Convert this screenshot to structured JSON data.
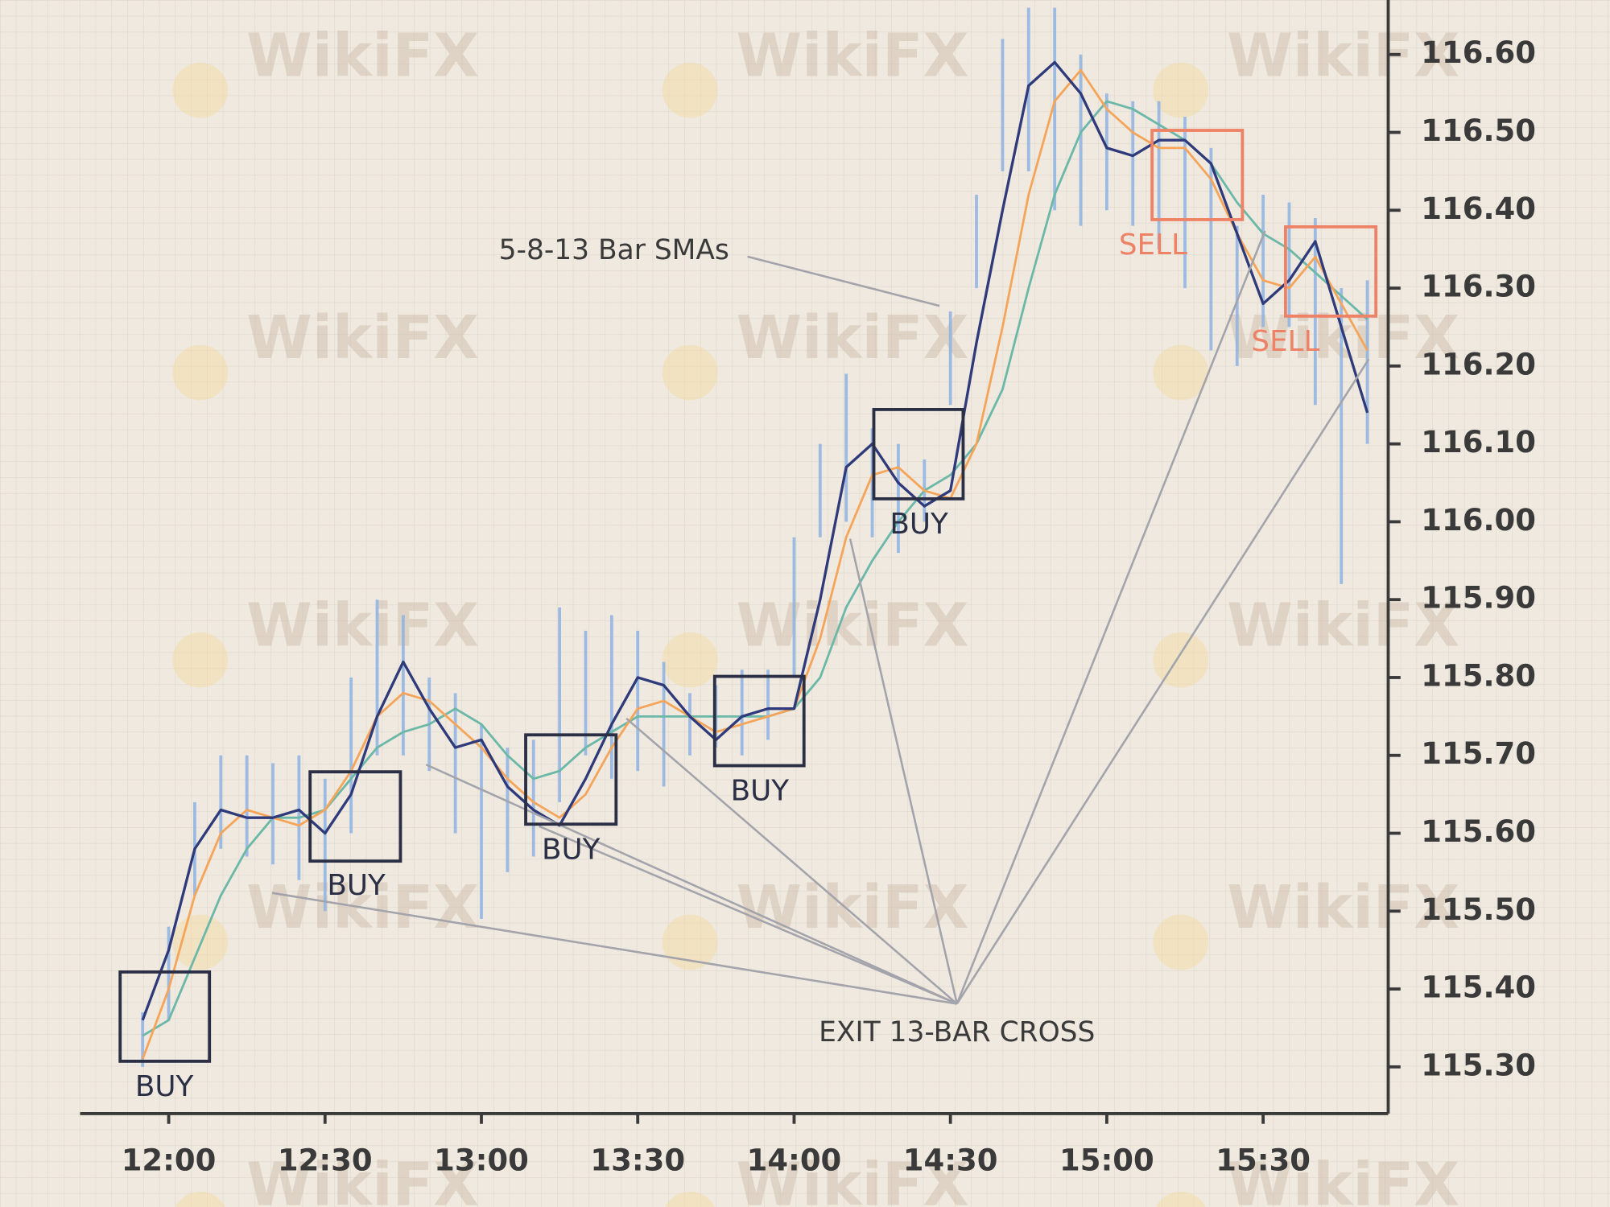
{
  "chart_data": {
    "type": "range",
    "watermark": "WikiFX",
    "x": [
      715,
      720,
      725,
      730,
      735,
      740,
      745,
      750,
      755,
      760,
      765,
      770,
      775,
      780,
      785,
      790,
      795,
      800,
      805,
      810,
      815,
      820,
      825,
      830,
      835,
      840,
      845,
      850,
      855,
      860,
      865,
      870,
      875,
      880,
      885,
      890,
      895,
      900,
      905,
      910,
      915,
      920,
      925,
      930,
      935,
      940,
      945,
      950
    ],
    "bars": {
      "color": "#8fb4e3",
      "high": [
        115.37,
        115.48,
        115.64,
        115.7,
        115.7,
        115.69,
        115.7,
        115.67,
        115.8,
        115.9,
        115.88,
        115.8,
        115.78,
        115.74,
        115.71,
        115.72,
        115.89,
        115.86,
        115.88,
        115.86,
        115.82,
        115.78,
        115.79,
        115.81,
        115.81,
        115.98,
        116.1,
        116.19,
        116.12,
        116.1,
        116.08,
        116.27,
        116.42,
        116.62,
        116.66,
        116.66,
        116.6,
        116.55,
        116.54,
        116.54,
        116.52,
        116.48,
        116.38,
        116.42,
        116.41,
        116.39,
        116.3,
        116.31
      ],
      "low": [
        115.3,
        115.36,
        115.52,
        115.58,
        115.57,
        115.56,
        115.54,
        115.5,
        115.6,
        115.7,
        115.7,
        115.68,
        115.6,
        115.49,
        115.55,
        115.57,
        115.64,
        115.7,
        115.67,
        115.68,
        115.66,
        115.7,
        115.71,
        115.7,
        115.72,
        115.8,
        115.98,
        116.0,
        115.98,
        115.96,
        116.0,
        116.15,
        116.3,
        116.45,
        116.45,
        116.4,
        116.38,
        116.4,
        116.38,
        116.35,
        116.3,
        116.22,
        116.2,
        116.25,
        116.25,
        116.15,
        115.92,
        116.1
      ]
    },
    "series": [
      {
        "color": "#6bb8a8",
        "values": [
          115.34,
          115.36,
          115.44,
          115.52,
          115.58,
          115.62,
          115.62,
          115.63,
          115.67,
          115.71,
          115.73,
          115.74,
          115.76,
          115.74,
          115.7,
          115.67,
          115.68,
          115.71,
          115.73,
          115.75,
          115.75,
          115.75,
          115.75,
          115.75,
          115.75,
          115.76,
          115.8,
          115.89,
          115.95,
          116.0,
          116.04,
          116.06,
          116.1,
          116.17,
          116.3,
          116.42,
          116.5,
          116.54,
          116.53,
          116.51,
          116.49,
          116.46,
          116.41,
          116.37,
          116.35,
          116.32,
          116.29,
          116.26
        ]
      },
      {
        "color": "#f5a55a",
        "values": [
          115.31,
          115.4,
          115.52,
          115.6,
          115.63,
          115.62,
          115.61,
          115.63,
          115.68,
          115.75,
          115.78,
          115.77,
          115.74,
          115.71,
          115.67,
          115.64,
          115.62,
          115.65,
          115.71,
          115.76,
          115.77,
          115.75,
          115.73,
          115.74,
          115.75,
          115.76,
          115.85,
          115.98,
          116.06,
          116.07,
          116.04,
          116.03,
          116.1,
          116.25,
          116.42,
          116.54,
          116.58,
          116.53,
          116.5,
          116.48,
          116.48,
          116.44,
          116.37,
          116.31,
          116.3,
          116.34,
          116.28,
          116.22
        ]
      },
      {
        "color": "#2e3a7a",
        "values": [
          115.36,
          115.45,
          115.58,
          115.63,
          115.62,
          115.62,
          115.63,
          115.6,
          115.65,
          115.75,
          115.82,
          115.76,
          115.71,
          115.72,
          115.66,
          115.63,
          115.61,
          115.67,
          115.74,
          115.8,
          115.79,
          115.75,
          115.72,
          115.75,
          115.76,
          115.76,
          115.9,
          116.07,
          116.1,
          116.05,
          116.02,
          116.04,
          116.23,
          116.4,
          116.56,
          116.59,
          116.55,
          116.48,
          116.47,
          116.49,
          116.49,
          116.46,
          116.37,
          116.28,
          116.31,
          116.36,
          116.25,
          116.14
        ]
      }
    ],
    "xlim": [
      703,
      954
    ],
    "ylim": [
      115.24,
      116.67
    ],
    "xticks": [
      {
        "value": 720,
        "label": "12:00"
      },
      {
        "value": 750,
        "label": "12:30"
      },
      {
        "value": 780,
        "label": "13:00"
      },
      {
        "value": 810,
        "label": "13:30"
      },
      {
        "value": 840,
        "label": "14:00"
      },
      {
        "value": 870,
        "label": "14:30"
      },
      {
        "value": 900,
        "label": "15:00"
      },
      {
        "value": 930,
        "label": "15:30"
      }
    ],
    "yticks": [
      {
        "value": 115.3,
        "label": "115.30"
      },
      {
        "value": 115.4,
        "label": "115.40"
      },
      {
        "value": 115.5,
        "label": "115.50"
      },
      {
        "value": 115.6,
        "label": "115.60"
      },
      {
        "value": 115.7,
        "label": "115.70"
      },
      {
        "value": 115.8,
        "label": "115.80"
      },
      {
        "value": 115.9,
        "label": "115.90"
      },
      {
        "value": 116.0,
        "label": "116.00"
      },
      {
        "value": 116.1,
        "label": "116.10"
      },
      {
        "value": 116.2,
        "label": "116.20"
      },
      {
        "value": 116.3,
        "label": "116.30"
      },
      {
        "value": 116.4,
        "label": "116.40"
      },
      {
        "value": 116.5,
        "label": "116.50"
      },
      {
        "value": 116.6,
        "label": "116.60"
      }
    ],
    "annotations": {
      "sma_label": "5-8-13 Bar SMAs",
      "exit_label": "EXIT 13-BAR CROSS",
      "signals": [
        "BUY",
        "BUY",
        "BUY",
        "BUY",
        "BUY",
        "SELL",
        "SELL"
      ]
    }
  }
}
